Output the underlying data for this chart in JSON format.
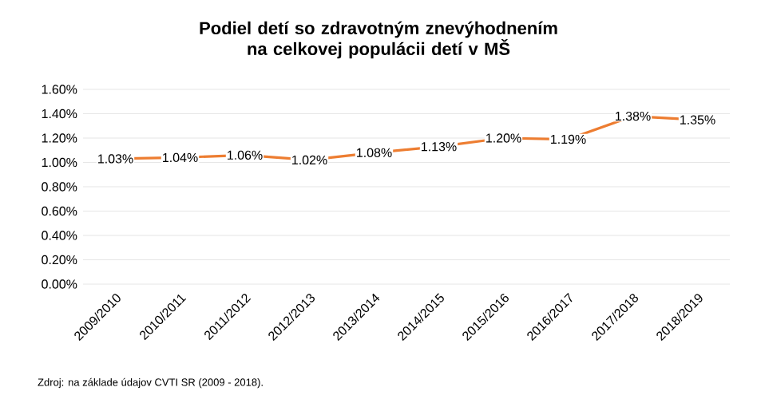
{
  "chart_data": {
    "type": "line",
    "title": "Podiel detí so zdravotným znevýhodnením na celkovej populácii detí v MŠ",
    "categories": [
      "2009/2010",
      "2010/2011",
      "2011/2012",
      "2012/2013",
      "2013/2014",
      "2014/2015",
      "2015/2016",
      "2016/2017",
      "2017/2018",
      "2018/2019"
    ],
    "values": [
      1.03,
      1.04,
      1.06,
      1.02,
      1.08,
      1.13,
      1.2,
      1.19,
      1.38,
      1.35
    ],
    "value_labels": [
      "1.03%",
      "1.04%",
      "1.06%",
      "1.02%",
      "1.08%",
      "1.13%",
      "1.20%",
      "1.19%",
      "1.38%",
      "1.35%"
    ],
    "color": "#ed7d31",
    "ylim": [
      0,
      1.6
    ],
    "yticks": [
      {
        "value": 0,
        "label": "0.00%"
      },
      {
        "value": 0.2,
        "label": "0.20%"
      },
      {
        "value": 0.4,
        "label": "0.40%"
      },
      {
        "value": 0.6,
        "label": "0.60%"
      },
      {
        "value": 0.8,
        "label": "0.80%"
      },
      {
        "value": 1.0,
        "label": "1.00%"
      },
      {
        "value": 1.2,
        "label": "1.20%"
      },
      {
        "value": 1.4,
        "label": "1.40%"
      },
      {
        "value": 1.6,
        "label": "1.60%"
      }
    ],
    "grid": "y",
    "marker": "none",
    "line_style": "solid",
    "annotations": [
      "Zdroj: na základe údajov CVTI SR (2009 - 2018)."
    ]
  }
}
